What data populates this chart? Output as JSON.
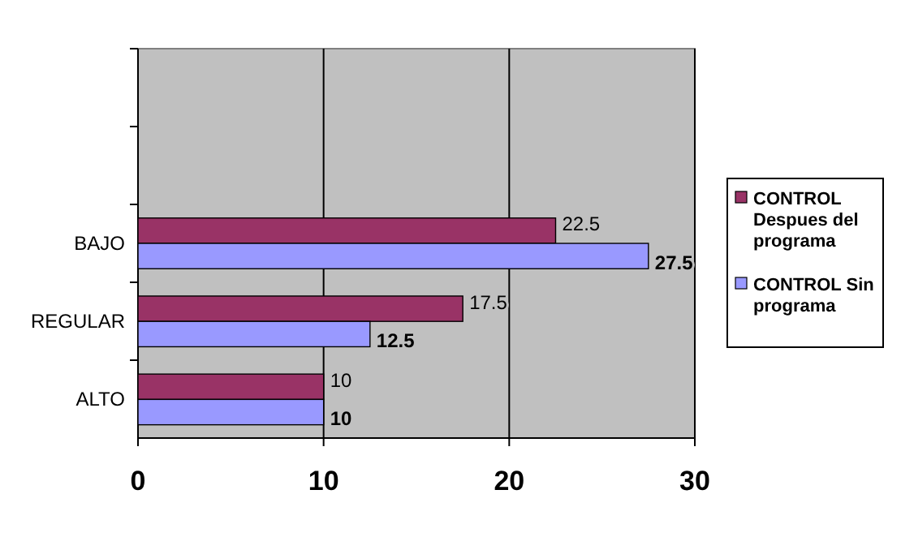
{
  "chart_data": {
    "type": "bar",
    "orientation": "horizontal",
    "categories": [
      null,
      null,
      "BAJO",
      "REGULAR",
      "ALTO"
    ],
    "series": [
      {
        "name": "CONTROL Despues del programa",
        "color": "#993366",
        "values": [
          null,
          null,
          22.5,
          17.5,
          10
        ]
      },
      {
        "name": "CONTROL Sin programa",
        "color": "#9999ff",
        "values": [
          null,
          null,
          27.5,
          12.5,
          10
        ]
      }
    ],
    "xlim": [
      0,
      30
    ],
    "xticks": [
      0,
      10,
      20,
      30
    ],
    "grid": "x",
    "legend": "right",
    "data_labels": true
  }
}
